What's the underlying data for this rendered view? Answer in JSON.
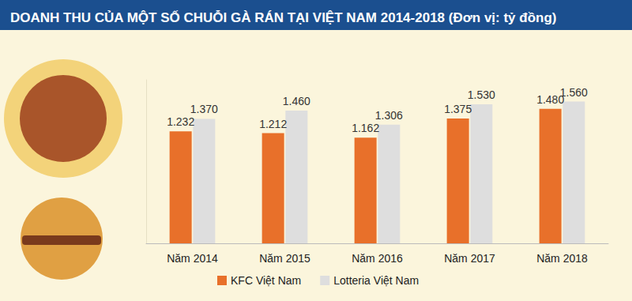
{
  "chart_data": {
    "type": "bar",
    "title": "DOANH THU CỦA MỘT SỐ CHUỖI GÀ RÁN TẠI VIỆT NAM 2014-2018 (Đơn vị: tỷ đồng)",
    "categories": [
      "Năm 2014",
      "Năm 2015",
      "Năm 2016",
      "Năm 2017",
      "Năm 2018"
    ],
    "series": [
      {
        "name": "KFC Việt Nam",
        "color": "#e8702a",
        "values": [
          1232,
          1212,
          1162,
          1375,
          1480
        ],
        "value_labels": [
          "1.232",
          "1.212",
          "1.162",
          "1.375",
          "1.480"
        ]
      },
      {
        "name": "Lotteria Việt Nam",
        "color": "#dedede",
        "values": [
          1370,
          1460,
          1306,
          1530,
          1560
        ],
        "value_labels": [
          "1.370",
          "1.460",
          "1.306",
          "1.530",
          "1.560"
        ]
      }
    ],
    "ylim": [
      0,
      1800
    ],
    "grid": false,
    "legend": "bottom",
    "data_labels": true,
    "tick_labels": "x"
  }
}
